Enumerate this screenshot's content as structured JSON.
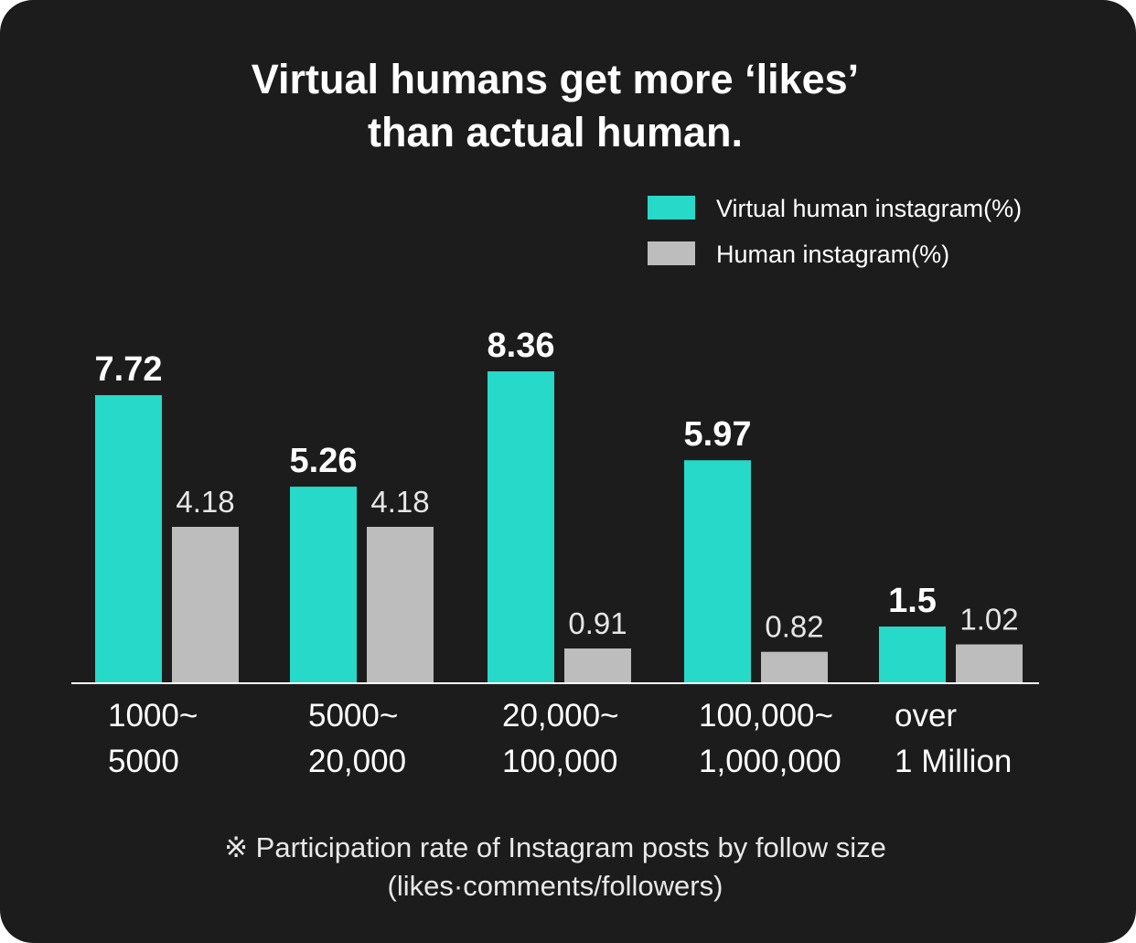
{
  "chart_data": {
    "type": "bar",
    "title_lines": [
      "Virtual humans get more ‘likes’",
      "than actual human."
    ],
    "categories": [
      [
        "1000~",
        "5000"
      ],
      [
        "5000~",
        "20,000"
      ],
      [
        "20,000~",
        "100,000"
      ],
      [
        "100,000~",
        "1,000,000"
      ],
      [
        "over",
        "1 Million"
      ]
    ],
    "series": [
      {
        "name": "Virtual human instagram(%)",
        "color": "#26d9c8",
        "values": [
          7.72,
          5.26,
          8.36,
          5.97,
          1.5
        ],
        "labels": [
          "7.72",
          "5.26",
          "8.36",
          "5.97",
          "1.5"
        ]
      },
      {
        "name": "Human instagram(%)",
        "color": "#bdbdbd",
        "values": [
          4.18,
          4.18,
          0.91,
          0.82,
          1.02
        ],
        "labels": [
          "4.18",
          "4.18",
          "0.91",
          "0.82",
          "1.02"
        ]
      }
    ],
    "ylim": [
      0,
      8.36
    ],
    "grid": false,
    "legend": "top-right",
    "footnote_lines": [
      "※ Participation rate of Instagram posts by follow size",
      "(likes·comments/followers)"
    ]
  }
}
